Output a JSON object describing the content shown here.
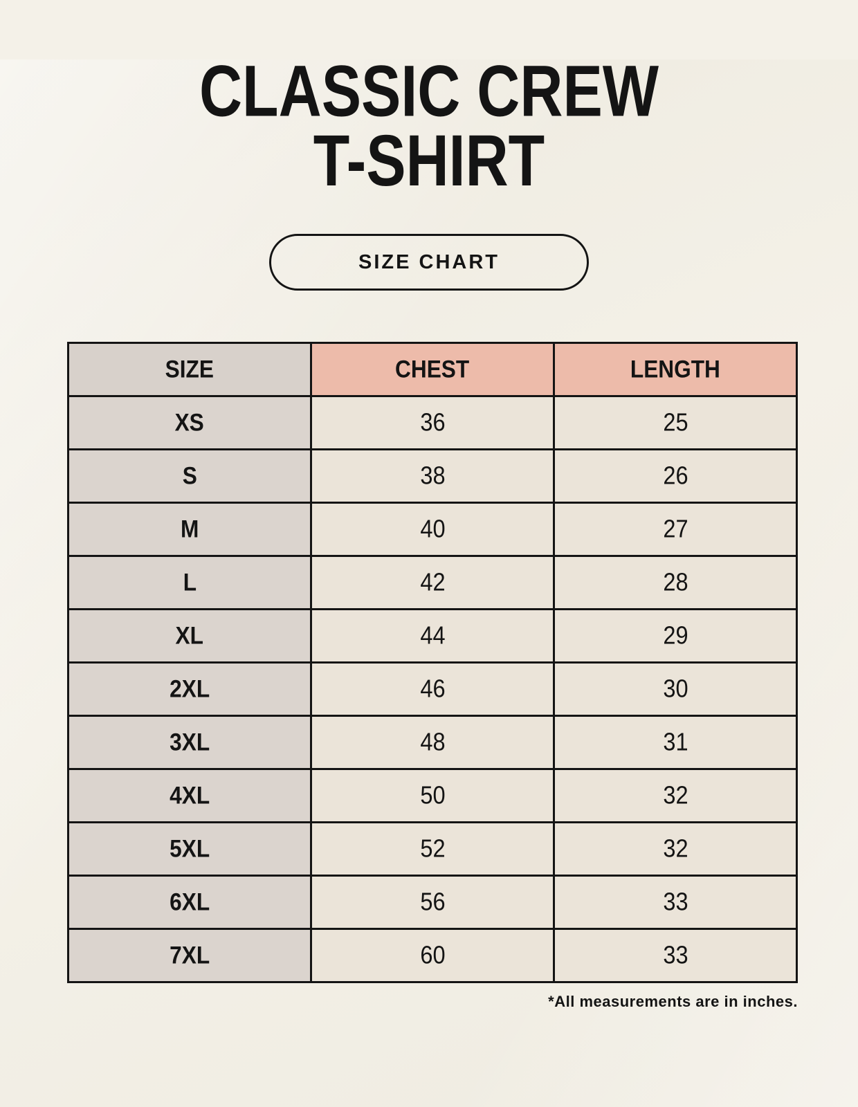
{
  "header": {
    "title_line1": "CLASSIC CREW",
    "title_line2": "T-SHIRT",
    "button_label": "SIZE CHART"
  },
  "footnote": "*All measurements are in inches.",
  "colors": {
    "background": "#F4F1E8",
    "header_accent_pink": "#EDBBAA",
    "header_size_gray": "#D8D1CB",
    "size_column_gray": "#DBD4CE",
    "data_cell_cream": "#EBE4D9",
    "border_black": "#141414",
    "text_black": "#141414"
  },
  "chart_data": {
    "type": "table",
    "title": "CLASSIC CREW T-SHIRT",
    "subtitle": "SIZE CHART",
    "columns": [
      "SIZE",
      "CHEST",
      "LENGTH"
    ],
    "rows": [
      [
        "XS",
        "36",
        "25"
      ],
      [
        "S",
        "38",
        "26"
      ],
      [
        "M",
        "40",
        "27"
      ],
      [
        "L",
        "42",
        "28"
      ],
      [
        "XL",
        "44",
        "29"
      ],
      [
        "2XL",
        "46",
        "30"
      ],
      [
        "3XL",
        "48",
        "31"
      ],
      [
        "4XL",
        "50",
        "32"
      ],
      [
        "5XL",
        "52",
        "32"
      ],
      [
        "6XL",
        "56",
        "33"
      ],
      [
        "7XL",
        "60",
        "33"
      ]
    ],
    "units_note": "*All measurements are in inches."
  }
}
